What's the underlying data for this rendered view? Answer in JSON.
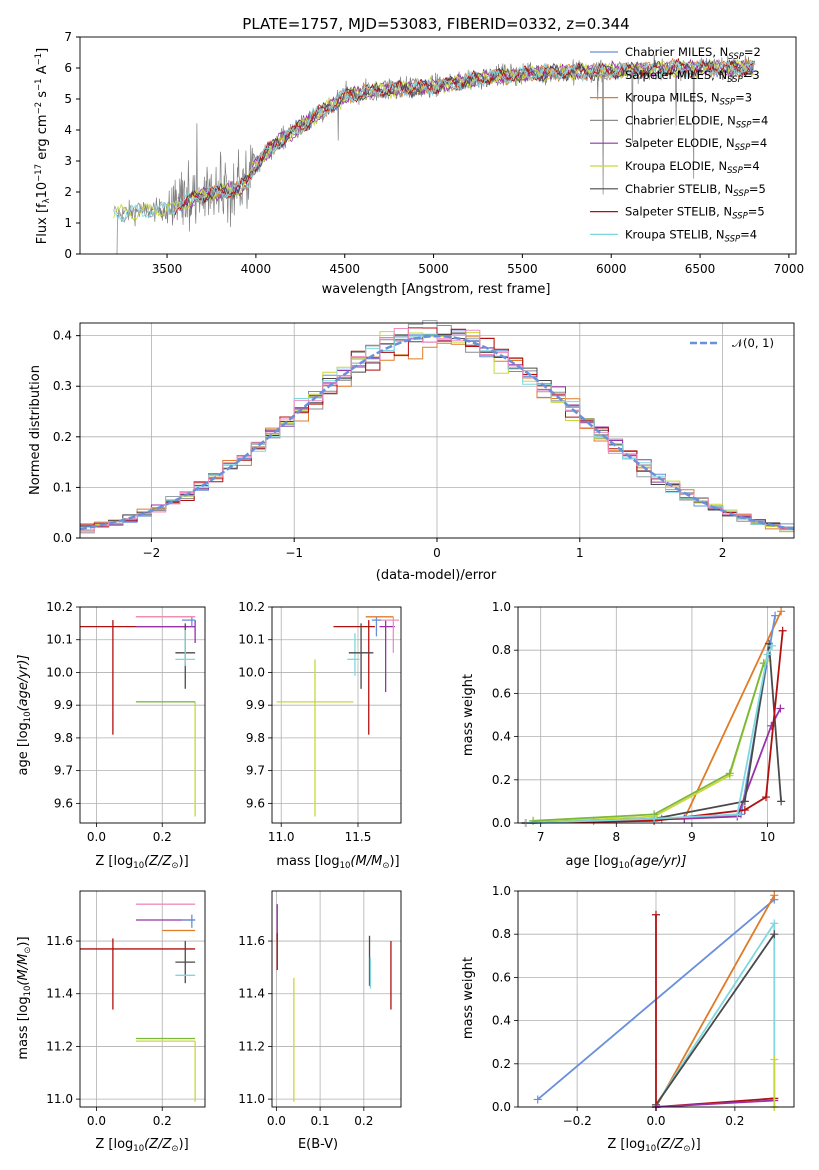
{
  "figure": {
    "title": "PLATE=1757, MJD=53083, FIBERID=0332, z=0.344"
  },
  "colors": {
    "Chabrier MILES": "#6a8fdb",
    "Salpeter MILES": "#9aa0a6",
    "Kroupa MILES": "#e07b28",
    "Chabrier ELODIE": "#8c8c8c",
    "Salpeter ELODIE": "#9932a8",
    "Kroupa ELODIE": "#c8d83a",
    "Chabrier STELIB": "#4a4a4a",
    "Salpeter STELIB": "#b01010",
    "Kroupa STELIB": "#7fd8e0",
    "data": "#808080",
    "normal_pink": "#f08cbe",
    "green_fit": "#7cb83a"
  },
  "chart_data": [
    {
      "id": "spectrum",
      "type": "line",
      "xlabel": "wavelength [Angstrom, rest frame]",
      "ylabel": "Flux [f",
      "ylabel_sub": "λ",
      "ylabel_rest": "10",
      "ylabel_sup1": "−17",
      "ylabel_rest2": " erg cm",
      "ylabel_sup2": "−2",
      "ylabel_rest3": " s",
      "ylabel_sup3": "−1",
      "ylabel_rest4": " A",
      "ylabel_sup4": "−1",
      "ylabel_end": "]",
      "xlim": [
        3010,
        7040
      ],
      "ylim": [
        0,
        7
      ],
      "xticks": [
        "3500",
        "4000",
        "4500",
        "5000",
        "5500",
        "6000",
        "6500",
        "7000"
      ],
      "xtick_values": [
        3500,
        4000,
        4500,
        5000,
        5500,
        6000,
        6500,
        7000
      ],
      "yticks": [
        "0",
        "1",
        "2",
        "3",
        "4",
        "5",
        "6",
        "7"
      ],
      "ytick_values": [
        0,
        1,
        2,
        3,
        4,
        5,
        6,
        7
      ],
      "data_range": [
        3200,
        6810
      ],
      "continuum": [
        [
          3200,
          1.3
        ],
        [
          3500,
          1.45
        ],
        [
          3700,
          1.9
        ],
        [
          3900,
          2.1
        ],
        [
          3950,
          2.3
        ],
        [
          4000,
          2.9
        ],
        [
          4100,
          3.5
        ],
        [
          4300,
          4.3
        ],
        [
          4500,
          5.1
        ],
        [
          4700,
          5.3
        ],
        [
          5000,
          5.4
        ],
        [
          5300,
          5.7
        ],
        [
          5600,
          5.85
        ],
        [
          6000,
          5.9
        ],
        [
          6400,
          6.0
        ],
        [
          6810,
          6.0
        ]
      ],
      "legend": [
        {
          "name": "Chabrier MILES",
          "n": "=2"
        },
        {
          "name": "Salpeter MILES",
          "n": "=3"
        },
        {
          "name": "Kroupa MILES",
          "n": "=3"
        },
        {
          "name": "Chabrier ELODIE",
          "n": "=4"
        },
        {
          "name": "Salpeter ELODIE",
          "n": "=4"
        },
        {
          "name": "Kroupa ELODIE",
          "n": "=4"
        },
        {
          "name": "Chabrier STELIB",
          "n": "=5"
        },
        {
          "name": "Salpeter STELIB",
          "n": "=5"
        },
        {
          "name": "Kroupa STELIB",
          "n": "=4"
        }
      ],
      "legend_N": "N",
      "legend_sub": "SSP",
      "legend_placement": "upper-right"
    },
    {
      "id": "residual-histogram",
      "type": "line",
      "xlabel": "(data-model)/error",
      "ylabel": "Normed distribution",
      "xlim": [
        -2.5,
        2.5
      ],
      "ylim": [
        0,
        0.425
      ],
      "xticks": [
        "−2",
        "−1",
        "0",
        "1",
        "2"
      ],
      "xtick_values": [
        -2,
        -1,
        0,
        1,
        2
      ],
      "yticks": [
        "0.0",
        "0.1",
        "0.2",
        "0.3",
        "0.4"
      ],
      "ytick_values": [
        0,
        0.1,
        0.2,
        0.3,
        0.4
      ],
      "bin_width": 0.1,
      "legend": [
        {
          "name": "𝒩(0, 1)",
          "style": "dashed"
        }
      ],
      "legend_placement": "upper-right",
      "grid": true
    },
    {
      "id": "age-vs-Z",
      "type": "scatter",
      "xlabel": "Z [log",
      "xlabel_sub": "10",
      "xlabel_rest": "(Z/Z",
      "xlabel_sub2": "⊙",
      "xlabel_end": ")]",
      "ylabel": "age  [log",
      "ylabel_sub": "10",
      "ylabel_rest": "(age/yr)]",
      "xlim": [
        -0.05,
        0.33
      ],
      "ylim": [
        9.54,
        10.2
      ],
      "xticks": [
        "0.0",
        "0.2"
      ],
      "xtick_values": [
        0,
        0.2
      ],
      "yticks": [
        "9.6",
        "9.7",
        "9.8",
        "9.9",
        "10.0",
        "10.1",
        "10.2"
      ],
      "ytick_values": [
        9.6,
        9.7,
        9.8,
        9.9,
        10.0,
        10.1,
        10.2
      ],
      "points": [
        {
          "model": "Salpeter STELIB",
          "x": 0.05,
          "y": 10.14,
          "xerr": [
            0.25,
            0.25
          ],
          "yerr": [
            0.33,
            0.02
          ]
        },
        {
          "model": "Kroupa ELODIE",
          "x": 0.3,
          "y": 9.91,
          "xerr": [
            0.18,
            0.0
          ],
          "yerr": [
            0.35,
            0.0
          ]
        },
        {
          "model": "green_fit",
          "x": 0.3,
          "y": 9.91,
          "xerr": [
            0.18,
            0.0
          ],
          "yerr": [
            0.0,
            0.0
          ]
        },
        {
          "model": "Kroupa MILES",
          "x": 0.3,
          "y": 10.17,
          "xerr": [
            0.18,
            0.0
          ],
          "yerr": [
            0.0,
            0.0
          ]
        },
        {
          "model": "Salpeter ELODIE",
          "x": 0.3,
          "y": 10.14,
          "xerr": [
            0.18,
            0.0
          ],
          "yerr": [
            0.05,
            0.02
          ]
        },
        {
          "model": "Chabrier STELIB",
          "x": 0.27,
          "y": 10.06,
          "xerr": [
            0.03,
            0.03
          ],
          "yerr": [
            0.11,
            0.09
          ]
        },
        {
          "model": "Kroupa STELIB",
          "x": 0.27,
          "y": 10.04,
          "xerr": [
            0.03,
            0.03
          ],
          "yerr": [
            0.02,
            0.09
          ]
        },
        {
          "model": "Chabrier MILES",
          "x": 0.29,
          "y": 10.16,
          "xerr": [
            0.03,
            0.01
          ],
          "yerr": [
            0.02,
            0.01
          ]
        },
        {
          "model": "normal_pink",
          "x": 0.3,
          "y": 10.17,
          "xerr": [
            0.18,
            0.0
          ],
          "yerr": [
            0.0,
            0.0
          ]
        }
      ]
    },
    {
      "id": "age-vs-mass",
      "type": "scatter",
      "xlabel": "mass [log",
      "xlabel_sub": "10",
      "xlabel_rest": "(M/M",
      "xlabel_sub2": "⊙",
      "xlabel_end": ")]",
      "xlim": [
        10.94,
        11.78
      ],
      "ylim": [
        9.54,
        10.2
      ],
      "xticks": [
        "11.0",
        "11.5"
      ],
      "xtick_values": [
        11.0,
        11.5
      ],
      "yticks": [
        "9.6",
        "9.7",
        "9.8",
        "9.9",
        "10.0",
        "10.1",
        "10.2"
      ],
      "ytick_values": [
        9.6,
        9.7,
        9.8,
        9.9,
        10.0,
        10.1,
        10.2
      ],
      "points": [
        {
          "model": "Kroupa ELODIE",
          "x": 11.22,
          "y": 9.91,
          "xerr": [
            0.25,
            0.25
          ],
          "yerr": [
            0.35,
            0.13
          ]
        },
        {
          "model": "green_fit",
          "x": 11.22,
          "y": 9.91,
          "xerr": [
            0.0,
            0.0
          ],
          "yerr": [
            0.0,
            0.0
          ]
        },
        {
          "model": "Salpeter STELIB",
          "x": 11.57,
          "y": 10.14,
          "xerr": [
            0.23,
            0.04
          ],
          "yerr": [
            0.33,
            0.02
          ]
        },
        {
          "model": "Kroupa STELIB",
          "x": 11.48,
          "y": 10.04,
          "xerr": [
            0.05,
            0.03
          ],
          "yerr": [
            0.05,
            0.08
          ]
        },
        {
          "model": "Chabrier STELIB",
          "x": 11.52,
          "y": 10.06,
          "xerr": [
            0.08,
            0.08
          ],
          "yerr": [
            0.11,
            0.09
          ]
        },
        {
          "model": "Salpeter ELODIE",
          "x": 11.68,
          "y": 10.14,
          "xerr": [
            0.04,
            0.06
          ],
          "yerr": [
            0.2,
            0.02
          ]
        },
        {
          "model": "Kroupa MILES",
          "x": 11.65,
          "y": 10.17,
          "xerr": [
            0.1,
            0.08
          ],
          "yerr": [
            0.0,
            0.0
          ]
        },
        {
          "model": "normal_pink",
          "x": 11.73,
          "y": 10.16,
          "xerr": [
            0.1,
            0.04
          ],
          "yerr": [
            0.1,
            0.01
          ]
        },
        {
          "model": "Chabrier MILES",
          "x": 11.62,
          "y": 10.16,
          "xerr": [
            0.03,
            0.03
          ],
          "yerr": [
            0.05,
            0.01
          ]
        }
      ]
    },
    {
      "id": "mass-weight-vs-age",
      "type": "line",
      "xlabel": "age  [log",
      "xlabel_sub": "10",
      "xlabel_rest": "(age/yr)]",
      "ylabel": "mass weight",
      "xlim": [
        6.7,
        10.35
      ],
      "ylim": [
        0,
        1.0
      ],
      "xticks": [
        "7",
        "8",
        "9",
        "10"
      ],
      "xtick_values": [
        7,
        8,
        9,
        10
      ],
      "yticks": [
        "0.0",
        "0.2",
        "0.4",
        "0.6",
        "0.8",
        "1.0"
      ],
      "ytick_values": [
        0,
        0.2,
        0.4,
        0.6,
        0.8,
        1.0
      ],
      "grid": true,
      "series": [
        {
          "model": "Kroupa MILES",
          "x": [
            6.8,
            7.7,
            8.9,
            10.18
          ],
          "y": [
            0.0,
            0.01,
            0.02,
            0.98
          ]
        },
        {
          "model": "Chabrier MILES",
          "x": [
            6.8,
            8.6,
            9.65,
            10.1
          ],
          "y": [
            0.0,
            0.02,
            0.04,
            0.96
          ]
        },
        {
          "model": "Salpeter ELODIE",
          "x": [
            6.8,
            8.9,
            9.6,
            10.05,
            10.17
          ],
          "y": [
            0.0,
            0.02,
            0.03,
            0.45,
            0.53
          ]
        },
        {
          "model": "Kroupa ELODIE",
          "x": [
            6.8,
            8.5,
            9.5,
            9.95,
            10.0
          ],
          "y": [
            0.0,
            0.03,
            0.22,
            0.74,
            0.75
          ]
        },
        {
          "model": "green_fit",
          "x": [
            6.9,
            8.5,
            9.5,
            9.95
          ],
          "y": [
            0.01,
            0.04,
            0.23,
            0.74
          ]
        },
        {
          "model": "Chabrier STELIB",
          "x": [
            6.8,
            8.5,
            9.7,
            10.02,
            10.18
          ],
          "y": [
            0.0,
            0.02,
            0.1,
            0.83,
            0.1
          ]
        },
        {
          "model": "Salpeter STELIB",
          "x": [
            6.8,
            8.5,
            9.7,
            9.98,
            10.2
          ],
          "y": [
            0.0,
            0.01,
            0.06,
            0.12,
            0.89
          ]
        },
        {
          "model": "Kroupa STELIB",
          "x": [
            6.8,
            8.5,
            9.6,
            10.0,
            10.06
          ],
          "y": [
            0.0,
            0.02,
            0.04,
            0.78,
            0.82
          ]
        }
      ]
    },
    {
      "id": "mass-vs-Z",
      "type": "scatter",
      "xlabel": "Z [log",
      "xlabel_sub": "10",
      "xlabel_rest": "(Z/Z",
      "xlabel_sub2": "⊙",
      "xlabel_end": ")]",
      "ylabel": "mass [log",
      "ylabel_sub": "10",
      "ylabel_rest": "(M/M",
      "ylabel_sub2": "⊙",
      "ylabel_end": ")]",
      "xlim": [
        -0.05,
        0.33
      ],
      "ylim": [
        10.97,
        11.79
      ],
      "xticks": [
        "0.0",
        "0.2"
      ],
      "xtick_values": [
        0,
        0.2
      ],
      "yticks": [
        "11.0",
        "11.2",
        "11.4",
        "11.6"
      ],
      "ytick_values": [
        11.0,
        11.2,
        11.4,
        11.6
      ],
      "points": [
        {
          "model": "Salpeter STELIB",
          "x": 0.05,
          "y": 11.57,
          "xerr": [
            0.25,
            0.25
          ],
          "yerr": [
            0.23,
            0.04
          ]
        },
        {
          "model": "Kroupa ELODIE",
          "x": 0.3,
          "y": 11.22,
          "xerr": [
            0.18,
            0.0
          ],
          "yerr": [
            0.23,
            0.0
          ]
        },
        {
          "model": "green_fit",
          "x": 0.3,
          "y": 11.23,
          "xerr": [
            0.18,
            0.0
          ],
          "yerr": [
            0.0,
            0.0
          ]
        },
        {
          "model": "normal_pink",
          "x": 0.3,
          "y": 11.74,
          "xerr": [
            0.18,
            0.0
          ],
          "yerr": [
            0.0,
            0.0
          ]
        },
        {
          "model": "Salpeter ELODIE",
          "x": 0.3,
          "y": 11.68,
          "xerr": [
            0.18,
            0.0
          ],
          "yerr": [
            0.0,
            0.0
          ]
        },
        {
          "model": "Kroupa MILES",
          "x": 0.3,
          "y": 11.64,
          "xerr": [
            0.1,
            0.0
          ],
          "yerr": [
            0.0,
            0.0
          ]
        },
        {
          "model": "Chabrier MILES",
          "x": 0.29,
          "y": 11.68,
          "xerr": [
            0.03,
            0.01
          ],
          "yerr": [
            0.03,
            0.02
          ]
        },
        {
          "model": "Chabrier STELIB",
          "x": 0.27,
          "y": 11.52,
          "xerr": [
            0.03,
            0.03
          ],
          "yerr": [
            0.08,
            0.08
          ]
        },
        {
          "model": "Kroupa STELIB",
          "x": 0.27,
          "y": 11.47,
          "xerr": [
            0.03,
            0.03
          ],
          "yerr": [
            0.0,
            0.0
          ]
        }
      ]
    },
    {
      "id": "mass-vs-EBV",
      "type": "scatter",
      "xlabel": "E(B-V)",
      "xlim": [
        -0.01,
        0.285
      ],
      "ylim": [
        10.97,
        11.79
      ],
      "xticks": [
        "0.0",
        "0.1",
        "0.2"
      ],
      "xtick_values": [
        0,
        0.1,
        0.2
      ],
      "yticks": [
        "11.0",
        "11.2",
        "11.4",
        "11.6"
      ],
      "ytick_values": [
        11.0,
        11.2,
        11.4,
        11.6
      ],
      "points": [
        {
          "model": "Salpeter ELODIE",
          "x": 0.002,
          "y": 11.68,
          "yerr": [
            0.08,
            0.06
          ]
        },
        {
          "model": "Salpeter STELIB",
          "x": 0.002,
          "y": 11.57,
          "yerr": [
            0.08,
            0.06
          ]
        },
        {
          "model": "Kroupa ELODIE",
          "x": 0.04,
          "y": 11.22,
          "yerr": [
            0.23,
            0.24
          ]
        },
        {
          "model": "Chabrier STELIB",
          "x": 0.213,
          "y": 11.52,
          "yerr": [
            0.09,
            0.1
          ]
        },
        {
          "model": "Kroupa STELIB",
          "x": 0.215,
          "y": 11.47,
          "yerr": [
            0.05,
            0.07
          ]
        },
        {
          "model": "Salpeter STELIB",
          "x": 0.262,
          "y": 11.47,
          "yerr": [
            0.13,
            0.13
          ]
        }
      ]
    },
    {
      "id": "mass-weight-vs-Z",
      "type": "line",
      "xlabel": "Z [log",
      "xlabel_sub": "10",
      "xlabel_rest": "(Z/Z",
      "xlabel_sub2": "⊙",
      "xlabel_end": ")]",
      "ylabel": "mass weight",
      "xlim": [
        -0.35,
        0.35
      ],
      "ylim": [
        0,
        1.0
      ],
      "xticks": [
        "−0.2",
        "0.0",
        "0.2"
      ],
      "xtick_values": [
        -0.2,
        0,
        0.2
      ],
      "yticks": [
        "0.0",
        "0.2",
        "0.4",
        "0.6",
        "0.8",
        "1.0"
      ],
      "ytick_values": [
        0,
        0.2,
        0.4,
        0.6,
        0.8,
        1.0
      ],
      "grid": true,
      "series": [
        {
          "model": "Chabrier MILES",
          "x": [
            -0.3,
            0.3
          ],
          "y": [
            0.035,
            0.96
          ]
        },
        {
          "model": "Kroupa MILES",
          "x": [
            0.0,
            0.3
          ],
          "y": [
            0.0,
            0.98
          ]
        },
        {
          "model": "Kroupa STELIB",
          "x": [
            0.0,
            0.3,
            0.3
          ],
          "y": [
            0.01,
            0.85,
            0.0
          ]
        },
        {
          "model": "Chabrier STELIB",
          "x": [
            0.0,
            0.3
          ],
          "y": [
            0.01,
            0.8
          ]
        },
        {
          "model": "Salpeter STELIB",
          "x": [
            0.0,
            0.0,
            0.0,
            0.3
          ],
          "y": [
            0.89,
            0.0,
            0.0,
            0.04
          ]
        },
        {
          "model": "Salpeter ELODIE",
          "x": [
            0.0,
            0.3
          ],
          "y": [
            0.0,
            0.03
          ]
        },
        {
          "model": "Kroupa ELODIE",
          "x": [
            0.3,
            0.3
          ],
          "y": [
            0.0,
            0.22
          ]
        }
      ]
    }
  ]
}
